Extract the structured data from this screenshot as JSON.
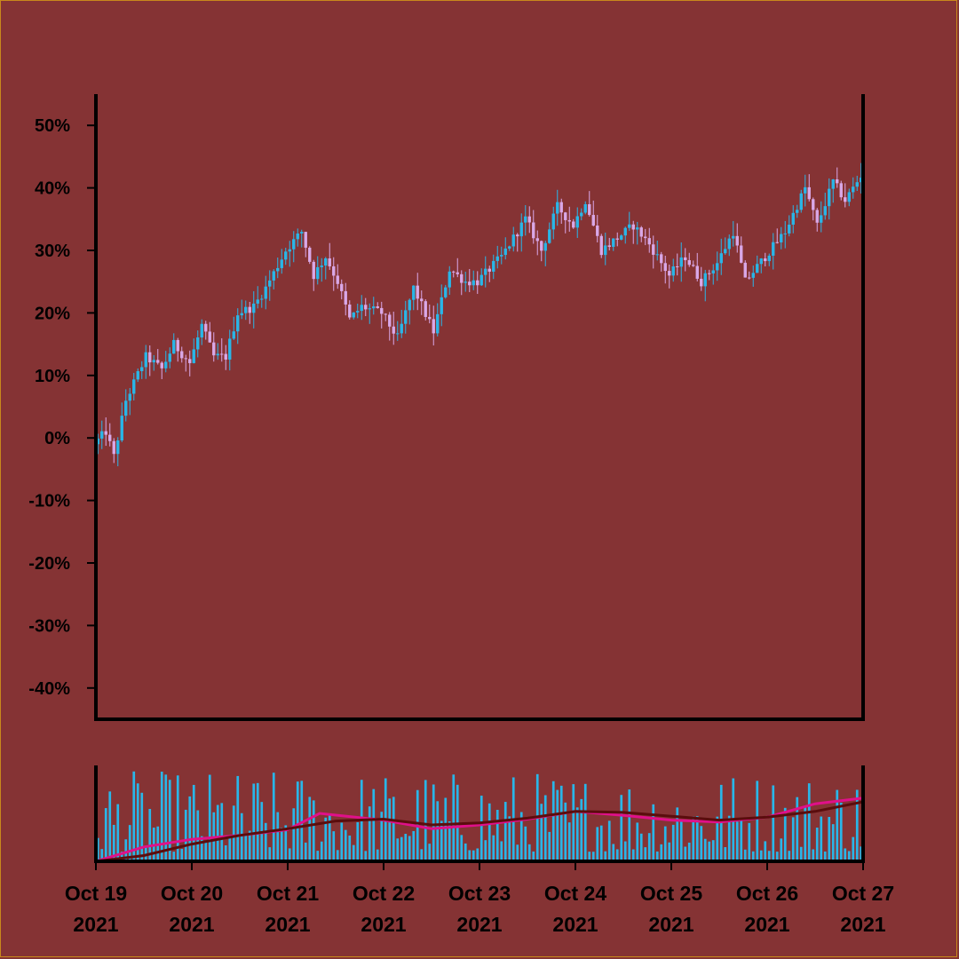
{
  "chart_data": [
    {
      "type": "candlestick",
      "y_unit": "%",
      "ylim": [
        -45,
        55
      ],
      "ytick_values": [
        -40,
        -30,
        -20,
        -10,
        0,
        10,
        20,
        30,
        40,
        50
      ],
      "ytick_labels": [
        "-40%",
        "-30%",
        "-20%",
        "-10%",
        "0%",
        "10%",
        "20%",
        "30%",
        "40%",
        "50%"
      ],
      "xlim": [
        "2021-10-19T00:00",
        "2021-10-27T00:00"
      ],
      "xtick_labels": [
        {
          "month_day": "Oct 19",
          "year": "2021"
        },
        {
          "month_day": "Oct 20",
          "year": "2021"
        },
        {
          "month_day": "Oct 21",
          "year": "2021"
        },
        {
          "month_day": "Oct 22",
          "year": "2021"
        },
        {
          "month_day": "Oct 23",
          "year": "2021"
        },
        {
          "month_day": "Oct 24",
          "year": "2021"
        },
        {
          "month_day": "Oct 25",
          "year": "2021"
        },
        {
          "month_day": "Oct 26",
          "year": "2021"
        },
        {
          "month_day": "Oct 27",
          "year": "2021"
        }
      ],
      "up_color": "#29b6e8",
      "down_color": "#d9a8e8",
      "grid": false,
      "price_path": [
        [
          "2021-10-19T00:00",
          -1
        ],
        [
          "2021-10-19T03:00",
          1
        ],
        [
          "2021-10-19T05:00",
          -3
        ],
        [
          "2021-10-19T08:00",
          6
        ],
        [
          "2021-10-19T13:00",
          13
        ],
        [
          "2021-10-19T17:00",
          11
        ],
        [
          "2021-10-19T20:00",
          15
        ],
        [
          "2021-10-20T00:00",
          12
        ],
        [
          "2021-10-20T03:00",
          18
        ],
        [
          "2021-10-20T06:00",
          13
        ],
        [
          "2021-10-20T09:00",
          13
        ],
        [
          "2021-10-20T12:00",
          20
        ],
        [
          "2021-10-20T16:00",
          21
        ],
        [
          "2021-10-20T19:00",
          24
        ],
        [
          "2021-10-21T00:00",
          30
        ],
        [
          "2021-10-21T04:00",
          33
        ],
        [
          "2021-10-21T07:00",
          26
        ],
        [
          "2021-10-21T10:00",
          29
        ],
        [
          "2021-10-21T13:00",
          25
        ],
        [
          "2021-10-21T16:00",
          19
        ],
        [
          "2021-10-21T19:00",
          21
        ],
        [
          "2021-10-22T00:00",
          20
        ],
        [
          "2021-10-22T04:00",
          16
        ],
        [
          "2021-10-22T08:00",
          24
        ],
        [
          "2021-10-22T13:00",
          17
        ],
        [
          "2021-10-22T17:00",
          27
        ],
        [
          "2021-10-22T21:00",
          25
        ],
        [
          "2021-10-23T00:00",
          25
        ],
        [
          "2021-10-23T06:00",
          29
        ],
        [
          "2021-10-23T12:00",
          35
        ],
        [
          "2021-10-23T16:00",
          30
        ],
        [
          "2021-10-23T20:00",
          37
        ],
        [
          "2021-10-24T00:00",
          34
        ],
        [
          "2021-10-24T03:00",
          38
        ],
        [
          "2021-10-24T07:00",
          30
        ],
        [
          "2021-10-24T11:00",
          32
        ],
        [
          "2021-10-24T15:00",
          34
        ],
        [
          "2021-10-24T19:00",
          31
        ],
        [
          "2021-10-25T00:00",
          26
        ],
        [
          "2021-10-25T04:00",
          29
        ],
        [
          "2021-10-25T08:00",
          25
        ],
        [
          "2021-10-25T12:00",
          28
        ],
        [
          "2021-10-25T16:00",
          33
        ],
        [
          "2021-10-25T19:00",
          25
        ],
        [
          "2021-10-26T00:00",
          29
        ],
        [
          "2021-10-26T05:00",
          33
        ],
        [
          "2021-10-26T10:00",
          40
        ],
        [
          "2021-10-26T13:00",
          34
        ],
        [
          "2021-10-26T17:00",
          41
        ],
        [
          "2021-10-26T20:00",
          38
        ],
        [
          "2021-10-27T00:00",
          42
        ]
      ]
    },
    {
      "type": "bar",
      "description_series": [
        {
          "kind": "volume_bars",
          "color": "#29b6e8"
        },
        {
          "kind": "line",
          "color": "#e0108a"
        },
        {
          "kind": "line",
          "color": "#5a0d0d"
        }
      ],
      "fast_line": [
        [
          "2021-10-19T00:00",
          0.0
        ],
        [
          "2021-10-19T12:00",
          0.15
        ],
        [
          "2021-10-20T00:00",
          0.23
        ],
        [
          "2021-10-20T12:00",
          0.27
        ],
        [
          "2021-10-21T00:00",
          0.33
        ],
        [
          "2021-10-21T08:00",
          0.5
        ],
        [
          "2021-10-22T00:00",
          0.43
        ],
        [
          "2021-10-22T12:00",
          0.34
        ],
        [
          "2021-10-23T00:00",
          0.38
        ],
        [
          "2021-10-23T12:00",
          0.44
        ],
        [
          "2021-10-24T00:00",
          0.52
        ],
        [
          "2021-10-24T12:00",
          0.48
        ],
        [
          "2021-10-25T00:00",
          0.43
        ],
        [
          "2021-10-25T12:00",
          0.41
        ],
        [
          "2021-10-26T00:00",
          0.46
        ],
        [
          "2021-10-26T12:00",
          0.6
        ],
        [
          "2021-10-27T00:00",
          0.66
        ]
      ],
      "slow_line": [
        [
          "2021-10-19T00:00",
          0.0
        ],
        [
          "2021-10-19T12:00",
          0.06
        ],
        [
          "2021-10-20T00:00",
          0.18
        ],
        [
          "2021-10-20T12:00",
          0.27
        ],
        [
          "2021-10-21T00:00",
          0.34
        ],
        [
          "2021-10-21T12:00",
          0.42
        ],
        [
          "2021-10-22T00:00",
          0.44
        ],
        [
          "2021-10-22T12:00",
          0.38
        ],
        [
          "2021-10-23T00:00",
          0.4
        ],
        [
          "2021-10-23T12:00",
          0.45
        ],
        [
          "2021-10-24T00:00",
          0.52
        ],
        [
          "2021-10-24T12:00",
          0.51
        ],
        [
          "2021-10-25T00:00",
          0.47
        ],
        [
          "2021-10-25T12:00",
          0.43
        ],
        [
          "2021-10-26T00:00",
          0.46
        ],
        [
          "2021-10-26T12:00",
          0.52
        ],
        [
          "2021-10-27T00:00",
          0.62
        ]
      ]
    }
  ]
}
